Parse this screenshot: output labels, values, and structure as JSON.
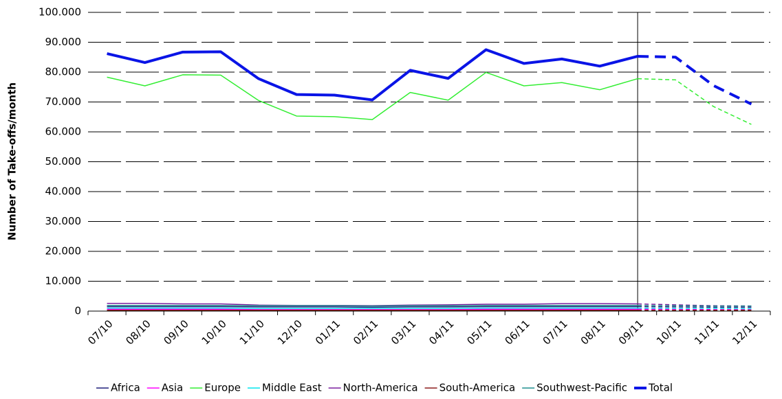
{
  "chart_data": {
    "type": "line",
    "y_label": "Number of Take-offs/month",
    "categories": [
      "07/10",
      "08/10",
      "09/10",
      "10/10",
      "11/10",
      "12/10",
      "01/11",
      "02/11",
      "03/11",
      "04/11",
      "05/11",
      "06/11",
      "07/11",
      "08/11",
      "09/11",
      "10/11",
      "11/11",
      "12/11"
    ],
    "ylim": [
      0,
      100000
    ],
    "yticks": [
      {
        "value": 0,
        "label": "0"
      },
      {
        "value": 10000,
        "label": "10.000"
      },
      {
        "value": 20000,
        "label": "20.000"
      },
      {
        "value": 30000,
        "label": "30.000"
      },
      {
        "value": 40000,
        "label": "40.000"
      },
      {
        "value": 50000,
        "label": "50.000"
      },
      {
        "value": 60000,
        "label": "60.000"
      },
      {
        "value": 70000,
        "label": "70.000"
      },
      {
        "value": 80000,
        "label": "80.000"
      },
      {
        "value": 90000,
        "label": "90.000"
      },
      {
        "value": 100000,
        "label": "100.000"
      }
    ],
    "grid": true,
    "legend": "bottom",
    "series": [
      {
        "name": "Africa",
        "color": "#1f1f7a",
        "line_width": 1.5,
        "values": [
          1500,
          1500,
          1500,
          1500,
          1400,
          1400,
          1400,
          1300,
          1400,
          1400,
          1500,
          1500,
          1500,
          1500,
          1500,
          null,
          null,
          null
        ],
        "forecast": [
          null,
          null,
          null,
          null,
          null,
          null,
          null,
          null,
          null,
          null,
          null,
          null,
          null,
          null,
          1500,
          1400,
          1300,
          1300
        ]
      },
      {
        "name": "Asia",
        "color": "#ff00ff",
        "line_width": 1.5,
        "values": [
          600,
          600,
          600,
          600,
          500,
          500,
          500,
          500,
          500,
          500,
          600,
          600,
          600,
          600,
          600,
          null,
          null,
          null
        ],
        "forecast": [
          null,
          null,
          null,
          null,
          null,
          null,
          null,
          null,
          null,
          null,
          null,
          null,
          null,
          null,
          600,
          600,
          500,
          500
        ]
      },
      {
        "name": "Europe",
        "color": "#33ee33",
        "line_width": 1.5,
        "values": [
          78300,
          75400,
          79100,
          79000,
          70500,
          65300,
          65100,
          64100,
          73200,
          70600,
          79900,
          75400,
          76500,
          74100,
          77800,
          null,
          null,
          null
        ],
        "forecast": [
          null,
          null,
          null,
          null,
          null,
          null,
          null,
          null,
          null,
          null,
          null,
          null,
          null,
          null,
          77800,
          77400,
          68500,
          62500
        ]
      },
      {
        "name": "Middle East",
        "color": "#00e5ee",
        "line_width": 1.5,
        "values": [
          1000,
          1000,
          1000,
          1000,
          900,
          900,
          900,
          900,
          900,
          900,
          1000,
          1000,
          1000,
          1000,
          1000,
          null,
          null,
          null
        ],
        "forecast": [
          null,
          null,
          null,
          null,
          null,
          null,
          null,
          null,
          null,
          null,
          null,
          null,
          null,
          null,
          1000,
          900,
          900,
          800
        ]
      },
      {
        "name": "North-America",
        "color": "#7a1f9e",
        "line_width": 1.5,
        "values": [
          2600,
          2600,
          2400,
          2400,
          2000,
          1900,
          1900,
          1800,
          2000,
          2100,
          2300,
          2300,
          2500,
          2500,
          2400,
          null,
          null,
          null
        ],
        "forecast": [
          null,
          null,
          null,
          null,
          null,
          null,
          null,
          null,
          null,
          null,
          null,
          null,
          null,
          null,
          2400,
          2100,
          1800,
          1700
        ]
      },
      {
        "name": "South-America",
        "color": "#8b1a1a",
        "line_width": 1.5,
        "values": [
          300,
          300,
          300,
          300,
          300,
          300,
          300,
          300,
          300,
          300,
          300,
          300,
          300,
          300,
          300,
          null,
          null,
          null
        ],
        "forecast": [
          null,
          null,
          null,
          null,
          null,
          null,
          null,
          null,
          null,
          null,
          null,
          null,
          null,
          null,
          300,
          300,
          300,
          300
        ]
      },
      {
        "name": "Southwest-Pacific",
        "color": "#1f8f8f",
        "line_width": 1.5,
        "values": [
          1900,
          1900,
          1900,
          1900,
          1800,
          1800,
          1800,
          1700,
          1800,
          1800,
          1900,
          1900,
          1900,
          1900,
          1900,
          null,
          null,
          null
        ],
        "forecast": [
          null,
          null,
          null,
          null,
          null,
          null,
          null,
          null,
          null,
          null,
          null,
          null,
          null,
          null,
          1900,
          1800,
          1700,
          1700
        ]
      },
      {
        "name": "Total",
        "color": "#0a14e6",
        "line_width": 4,
        "values": [
          86200,
          83200,
          86700,
          86800,
          77800,
          72500,
          72300,
          70700,
          80600,
          77900,
          87500,
          82900,
          84400,
          82000,
          85300,
          null,
          null,
          null
        ],
        "forecast": [
          null,
          null,
          null,
          null,
          null,
          null,
          null,
          null,
          null,
          null,
          null,
          null,
          null,
          null,
          85300,
          85000,
          75500,
          69300
        ]
      }
    ]
  }
}
